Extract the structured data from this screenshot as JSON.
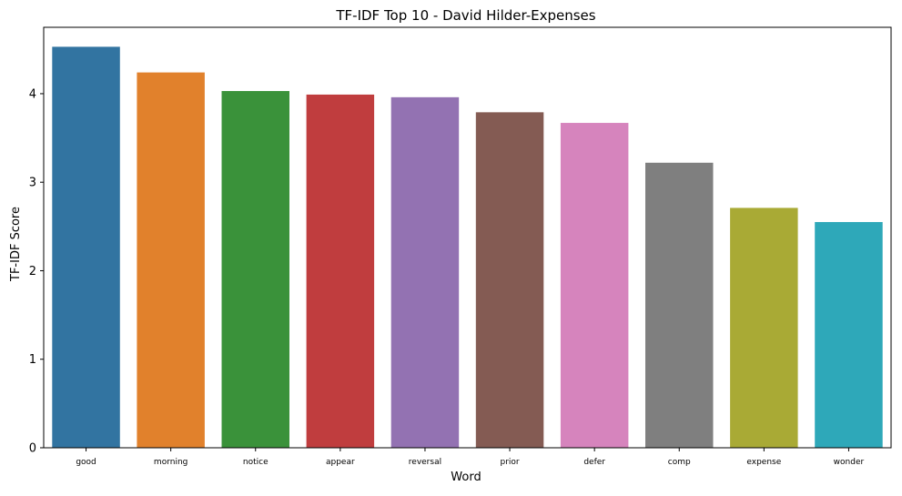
{
  "chart_data": {
    "type": "bar",
    "title": "TF-IDF Top 10 - David Hilder-Expenses",
    "xlabel": "Word",
    "ylabel": "TF-IDF Score",
    "ylim": [
      0,
      4.75
    ],
    "yticks": [
      0,
      1,
      2,
      3,
      4
    ],
    "grid": false,
    "categories": [
      "good",
      "morning",
      "notice",
      "appear",
      "reversal",
      "prior",
      "defer",
      "comp",
      "expense",
      "wonder"
    ],
    "values": [
      4.53,
      4.24,
      4.03,
      3.99,
      3.96,
      3.79,
      3.67,
      3.22,
      2.71,
      2.55
    ],
    "colors": [
      "#3274a1",
      "#e1812c",
      "#3a923a",
      "#c03d3e",
      "#9372b2",
      "#845b53",
      "#d684bd",
      "#7f7f7f",
      "#a9aa35",
      "#2ea8b9"
    ]
  }
}
